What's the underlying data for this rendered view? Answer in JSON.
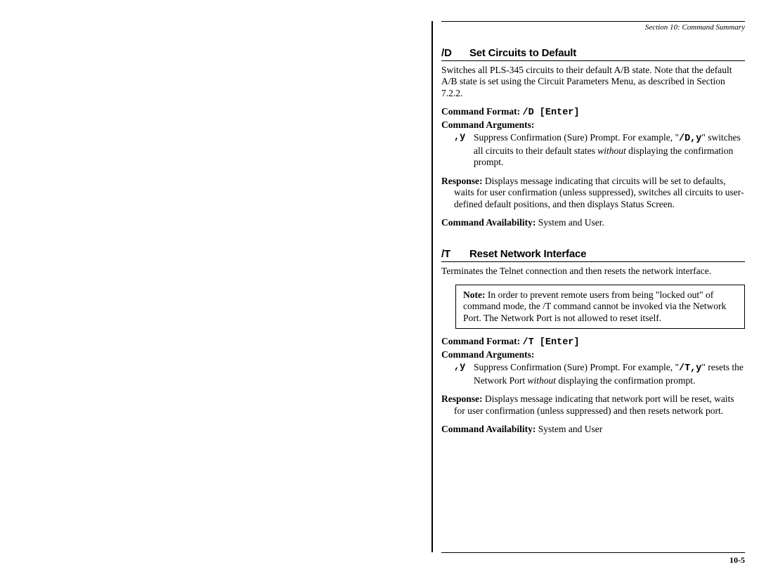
{
  "header": {
    "section_label": "Section 10:   Command Summary"
  },
  "commands": [
    {
      "code": "/D",
      "title": "Set Circuits to Default",
      "description": "Switches all PLS-345 circuits to their default A/B state.  Note that the default A/B state is set using the Circuit Parameters Menu, as described in Section 7.2.2.",
      "format_label": "Command Format:",
      "format_value": "/D [Enter]",
      "args_label": "Command Arguments:",
      "arg_key": ",y",
      "arg_text_1": "Suppress Confirmation (Sure) Prompt.  For example, \"",
      "arg_mono": "/D,y",
      "arg_text_2": "\" switches all circuits to their default states ",
      "arg_italic": "without",
      "arg_text_3": " displaying the confirmation prompt.",
      "response_label": "Response:",
      "response_text": "  Displays message indicating that circuits will be set to defaults, waits for user confirmation (unless suppressed), switches all circuits to user-defined default positions, and then displays Status Screen.",
      "avail_label": "Command Availability:",
      "avail_text": "  System and User."
    },
    {
      "code": "/T",
      "title": "Reset Network Interface",
      "description": "Terminates the Telnet connection and then resets the network interface.",
      "note_label": "Note:",
      "note_text": "  In order to prevent remote users from being \"locked out\" of command mode, the /T command cannot be invoked via the Network Port.  The Network Port is not allowed to reset itself.",
      "format_label": "Command Format:",
      "format_value": "/T [Enter]",
      "args_label": "Command Arguments:",
      "arg_key": ",y",
      "arg_text_1": "Suppress Confirmation (Sure) Prompt.  For example, \"",
      "arg_mono": "/T,y",
      "arg_text_2": "\" resets the Network Port ",
      "arg_italic": "without",
      "arg_text_3": " displaying the confirmation prompt.",
      "response_label": "Response:",
      "response_text": "  Displays message indicating that network port will be reset, waits for user confirmation (unless suppressed) and then resets network port.",
      "avail_label": "Command Availability:",
      "avail_text": "  System and User"
    }
  ],
  "footer": {
    "page_number": "10-5"
  }
}
